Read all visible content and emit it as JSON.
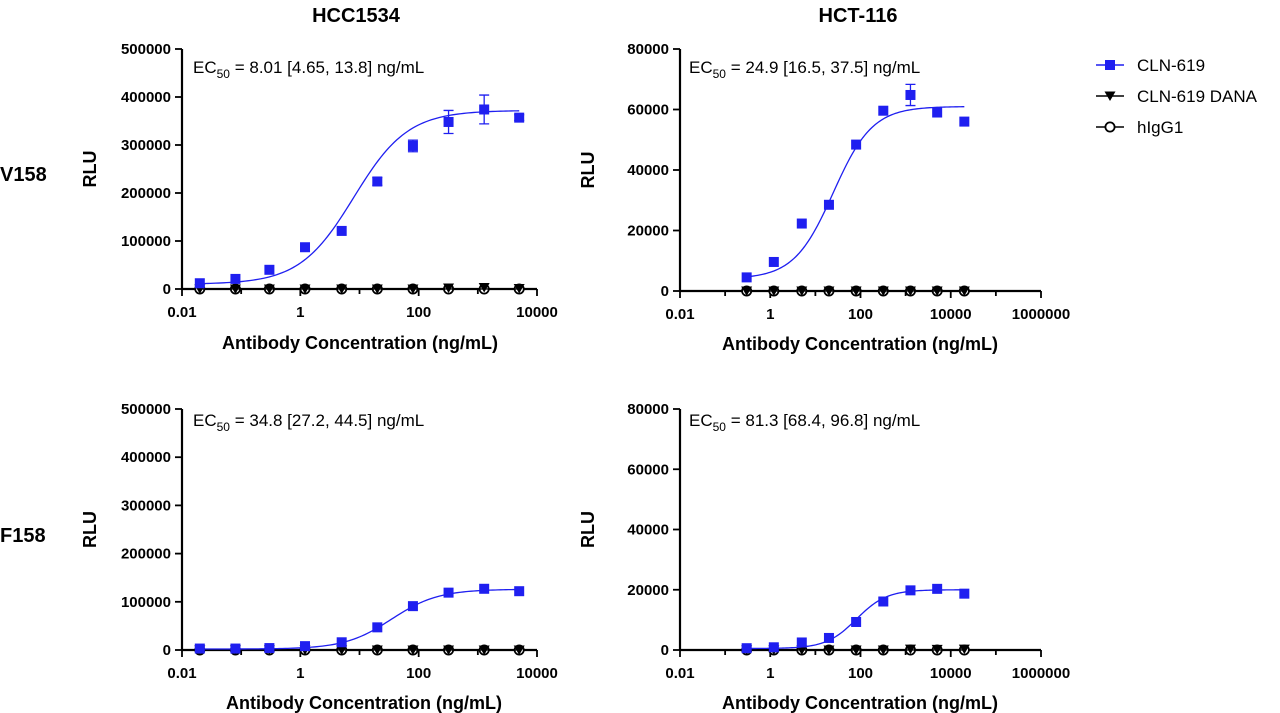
{
  "figure": {
    "column_titles": [
      "HCC1534",
      "HCT-116"
    ],
    "row_labels": [
      "V158",
      "F158"
    ],
    "colors": {
      "primary": "#1f1ff0",
      "dark": "#000000"
    },
    "legend": [
      {
        "label": "CLN-619",
        "marker": "square",
        "color": "#1f1ff0"
      },
      {
        "label": "CLN-619 DANA",
        "marker": "triangle-down",
        "color": "#000000"
      },
      {
        "label": "hIgG1",
        "marker": "open-circle",
        "color": "#000000"
      }
    ]
  },
  "chart_data": [
    {
      "type": "scatter",
      "panel": "HCC1534 V158",
      "ec50_text": {
        "prefix": "EC",
        "sub": "50",
        "rest": " = 8.01 [4.65, 13.8] ng/mL"
      },
      "xlabel": "Antibody Concentration  (ng/mL)",
      "ylabel": "RLU",
      "x_scale": "log",
      "xlim": [
        0.01,
        10000
      ],
      "x_ticks": [
        "0.01",
        "1",
        "100",
        "10000"
      ],
      "ylim": [
        0,
        500000
      ],
      "y_ticks": [
        "0",
        "100000",
        "200000",
        "300000",
        "400000",
        "500000"
      ],
      "series": [
        {
          "name": "CLN-619",
          "x": [
            0.02,
            0.08,
            0.3,
            1.2,
            5,
            20,
            80,
            320,
            1280,
            5000
          ],
          "y": [
            12000,
            21000,
            40000,
            87000,
            121000,
            224000,
            298000,
            348000,
            374000,
            357000
          ],
          "err": [
            0,
            0,
            0,
            0,
            0,
            8000,
            12000,
            24000,
            30000,
            6000
          ],
          "fit": {
            "bottom": 10000,
            "top": 372000,
            "ec50": 8.01,
            "hill": 0.95
          }
        },
        {
          "name": "CLN-619 DANA",
          "x": [
            0.02,
            0.08,
            0.3,
            1.2,
            5,
            20,
            80,
            320,
            1280,
            5000
          ],
          "y": [
            0,
            0,
            0,
            0,
            0,
            0,
            0,
            2000,
            3000,
            1000
          ]
        },
        {
          "name": "hIgG1",
          "x": [
            0.02,
            0.08,
            0.3,
            1.2,
            5,
            20,
            80,
            320,
            1280,
            5000
          ],
          "y": [
            0,
            0,
            0,
            0,
            0,
            0,
            0,
            0,
            0,
            0
          ]
        }
      ]
    },
    {
      "type": "scatter",
      "panel": "HCT-116 V158",
      "ec50_text": {
        "prefix": "EC",
        "sub": "50",
        "rest": " = 24.9 [16.5, 37.5] ng/mL"
      },
      "xlabel": "Antibody Concentration  (ng/mL)",
      "ylabel": "RLU",
      "x_scale": "log",
      "xlim": [
        0.01,
        1000000
      ],
      "x_ticks": [
        "0.01",
        "1",
        "100",
        "10000",
        "1000000"
      ],
      "ylim": [
        0,
        80000
      ],
      "y_ticks": [
        "0",
        "20000",
        "40000",
        "60000",
        "80000"
      ],
      "series": [
        {
          "name": "CLN-619",
          "x": [
            0.3,
            1.2,
            5,
            20,
            80,
            320,
            1280,
            5000,
            20000
          ],
          "y": [
            4500,
            9600,
            22300,
            28500,
            48400,
            59600,
            64800,
            59000,
            56000
          ],
          "err": [
            0,
            0,
            0,
            0,
            0,
            0,
            3500,
            0,
            0
          ],
          "fit": {
            "bottom": 4000,
            "top": 61000,
            "ec50": 24.9,
            "hill": 1.0
          }
        },
        {
          "name": "CLN-619 DANA",
          "x": [
            0.3,
            1.2,
            5,
            20,
            80,
            320,
            1280,
            5000,
            20000
          ],
          "y": [
            0,
            0,
            0,
            0,
            0,
            0,
            0,
            0,
            0
          ]
        },
        {
          "name": "hIgG1",
          "x": [
            0.3,
            1.2,
            5,
            20,
            80,
            320,
            1280,
            5000,
            20000
          ],
          "y": [
            0,
            0,
            0,
            0,
            0,
            0,
            0,
            0,
            0
          ]
        }
      ]
    },
    {
      "type": "scatter",
      "panel": "HCC1534 F158",
      "ec50_text": {
        "prefix": "EC",
        "sub": "50",
        "rest": " = 34.8 [27.2, 44.5] ng/mL"
      },
      "xlabel": "Antibody Concentration  (ng/mL)",
      "ylabel": "RLU",
      "x_scale": "log",
      "xlim": [
        0.01,
        10000
      ],
      "x_ticks": [
        "0.01",
        "1",
        "100",
        "10000"
      ],
      "ylim": [
        0,
        500000
      ],
      "y_ticks": [
        "0",
        "100000",
        "200000",
        "300000",
        "400000",
        "500000"
      ],
      "series": [
        {
          "name": "CLN-619",
          "x": [
            0.02,
            0.08,
            0.3,
            1.2,
            5,
            20,
            80,
            320,
            1280,
            5000
          ],
          "y": [
            3000,
            3000,
            4000,
            8000,
            16000,
            47000,
            91000,
            119000,
            127000,
            122000
          ],
          "err": [
            0,
            0,
            0,
            0,
            0,
            0,
            0,
            0,
            0,
            0
          ],
          "fit": {
            "bottom": 2000,
            "top": 126000,
            "ec50": 34.8,
            "hill": 1.1
          }
        },
        {
          "name": "CLN-619 DANA",
          "x": [
            0.02,
            0.08,
            0.3,
            1.2,
            5,
            20,
            80,
            320,
            1280,
            5000
          ],
          "y": [
            0,
            0,
            0,
            0,
            0,
            0,
            0,
            0,
            0,
            0
          ]
        },
        {
          "name": "hIgG1",
          "x": [
            0.02,
            0.08,
            0.3,
            1.2,
            5,
            20,
            80,
            320,
            1280,
            5000
          ],
          "y": [
            0,
            0,
            0,
            0,
            0,
            0,
            0,
            0,
            0,
            0
          ]
        }
      ]
    },
    {
      "type": "scatter",
      "panel": "HCT-116 F158",
      "ec50_text": {
        "prefix": "EC",
        "sub": "50",
        "rest": " = 81.3 [68.4, 96.8] ng/mL"
      },
      "xlabel": "Antibody Concentration  (ng/mL)",
      "ylabel": "RLU",
      "x_scale": "log",
      "xlim": [
        0.01,
        1000000
      ],
      "x_ticks": [
        "0.01",
        "1",
        "100",
        "10000",
        "1000000"
      ],
      "ylim": [
        0,
        80000
      ],
      "y_ticks": [
        "0",
        "20000",
        "40000",
        "60000",
        "80000"
      ],
      "series": [
        {
          "name": "CLN-619",
          "x": [
            0.3,
            1.2,
            5,
            20,
            80,
            320,
            1280,
            5000,
            20000
          ],
          "y": [
            600,
            900,
            2500,
            4000,
            9300,
            16100,
            19800,
            20300,
            18700
          ],
          "err": [
            0,
            0,
            0,
            0,
            0,
            0,
            0,
            0,
            0
          ],
          "fit": {
            "bottom": 500,
            "top": 20000,
            "ec50": 81.3,
            "hill": 1.3
          }
        },
        {
          "name": "CLN-619 DANA",
          "x": [
            0.3,
            1.2,
            5,
            20,
            80,
            320,
            1280,
            5000,
            20000
          ],
          "y": [
            0,
            0,
            0,
            0,
            0,
            0,
            300,
            200,
            300
          ]
        },
        {
          "name": "hIgG1",
          "x": [
            0.3,
            1.2,
            5,
            20,
            80,
            320,
            1280,
            5000,
            20000
          ],
          "y": [
            0,
            0,
            0,
            0,
            0,
            0,
            0,
            0,
            0
          ]
        }
      ]
    }
  ]
}
